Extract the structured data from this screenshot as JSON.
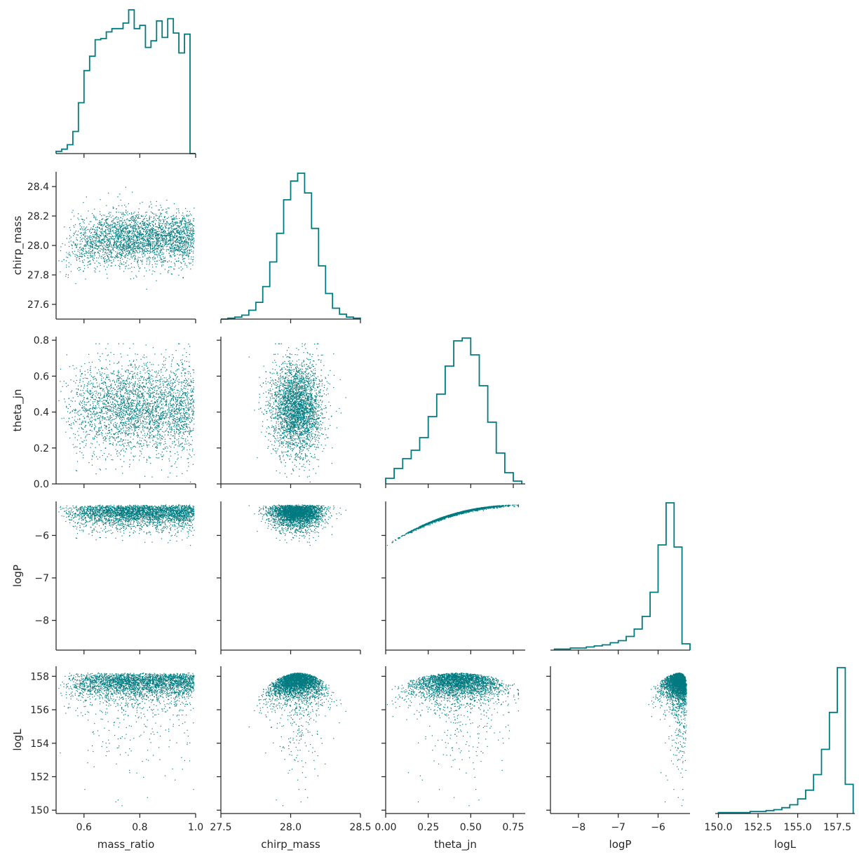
{
  "chart_data": {
    "type": "corner",
    "color": "#007b80",
    "variables": [
      {
        "name": "mass_ratio",
        "range": [
          0.5,
          1.0
        ],
        "ticks": [
          0.6,
          0.8,
          1.0
        ],
        "tick_labels": [
          "0.6",
          "0.8",
          "1.0"
        ]
      },
      {
        "name": "chirp_mass",
        "range": [
          27.5,
          28.5
        ],
        "ticks": [
          27.6,
          27.8,
          28.0,
          28.2,
          28.4
        ],
        "tick_labels": [
          "27.6",
          "27.8",
          "28.0",
          "28.2",
          "28.4"
        ],
        "x_ticks": [
          27.5,
          28.0,
          28.5
        ],
        "x_tick_labels": [
          "27.5",
          "28.0",
          "28.5"
        ]
      },
      {
        "name": "theta_jn",
        "range": [
          0.0,
          0.82
        ],
        "ticks": [
          0.0,
          0.2,
          0.4,
          0.6,
          0.8
        ],
        "tick_labels": [
          "0.0",
          "0.2",
          "0.4",
          "0.6",
          "0.8"
        ],
        "x_ticks": [
          0.0,
          0.25,
          0.5,
          0.75
        ],
        "x_tick_labels": [
          "0.00",
          "0.25",
          "0.50",
          "0.75"
        ]
      },
      {
        "name": "logP",
        "range": [
          -8.7,
          -5.2
        ],
        "ticks": [
          -8,
          -7,
          -6
        ],
        "tick_labels": [
          "−8",
          "−7",
          "−6"
        ]
      },
      {
        "name": "logL",
        "range": [
          149.8,
          158.6
        ],
        "ticks": [
          150,
          152,
          154,
          156,
          158
        ],
        "tick_labels": [
          "150",
          "152",
          "154",
          "156",
          "158"
        ],
        "x_ticks": [
          150.0,
          152.5,
          155.0,
          157.5
        ],
        "x_tick_labels": [
          "150.0",
          "152.5",
          "155.0",
          "157.5"
        ]
      }
    ],
    "histograms": [
      {
        "variable": "mass_ratio",
        "bin_edges": [
          0.5,
          0.52,
          0.54,
          0.56,
          0.58,
          0.6,
          0.62,
          0.64,
          0.66,
          0.68,
          0.7,
          0.72,
          0.74,
          0.76,
          0.78,
          0.8,
          0.82,
          0.84,
          0.86,
          0.88,
          0.9,
          0.92,
          0.94,
          0.96,
          0.98,
          1.0
        ],
        "counts": [
          2,
          4,
          8,
          20,
          46,
          75,
          88,
          103,
          104,
          110,
          113,
          113,
          118,
          130,
          113,
          116,
          96,
          102,
          120,
          105,
          122,
          109,
          91,
          108,
          0
        ]
      },
      {
        "variable": "chirp_mass",
        "bin_edges": [
          27.5,
          27.55,
          27.6,
          27.65,
          27.7,
          27.75,
          27.8,
          27.85,
          27.9,
          27.95,
          28.0,
          28.05,
          28.1,
          28.15,
          28.2,
          28.25,
          28.3,
          28.35,
          28.4,
          28.45,
          28.5
        ],
        "counts": [
          0,
          1,
          2,
          4,
          9,
          17,
          33,
          58,
          87,
          121,
          140,
          148,
          128,
          92,
          54,
          26,
          11,
          5,
          2,
          1
        ]
      },
      {
        "variable": "theta_jn",
        "bin_edges": [
          0.0,
          0.05,
          0.1,
          0.15,
          0.2,
          0.25,
          0.3,
          0.35,
          0.4,
          0.45,
          0.5,
          0.55,
          0.6,
          0.65,
          0.7,
          0.75,
          0.8
        ],
        "counts": [
          4,
          11,
          18,
          24,
          33,
          48,
          64,
          84,
          102,
          104,
          92,
          70,
          44,
          22,
          8,
          2
        ]
      },
      {
        "variable": "logP",
        "bin_edges": [
          -8.6,
          -8.4,
          -8.2,
          -8.0,
          -7.8,
          -7.6,
          -7.4,
          -7.2,
          -7.0,
          -6.8,
          -6.6,
          -6.4,
          -6.2,
          -6.0,
          -5.8,
          -5.6,
          -5.4,
          -5.2
        ],
        "counts": [
          1,
          1,
          2,
          2,
          3,
          4,
          5,
          7,
          9,
          13,
          20,
          32,
          55,
          100,
          140,
          98,
          6
        ]
      },
      {
        "variable": "logL",
        "bin_edges": [
          150.0,
          150.5,
          151.0,
          151.5,
          152.0,
          152.5,
          153.0,
          153.5,
          154.0,
          154.5,
          155.0,
          155.5,
          156.0,
          156.5,
          157.0,
          157.5,
          158.0,
          158.5
        ],
        "counts": [
          1,
          1,
          1,
          1,
          2,
          2,
          3,
          4,
          6,
          9,
          15,
          24,
          40,
          66,
          104,
          150,
          30
        ]
      }
    ]
  }
}
